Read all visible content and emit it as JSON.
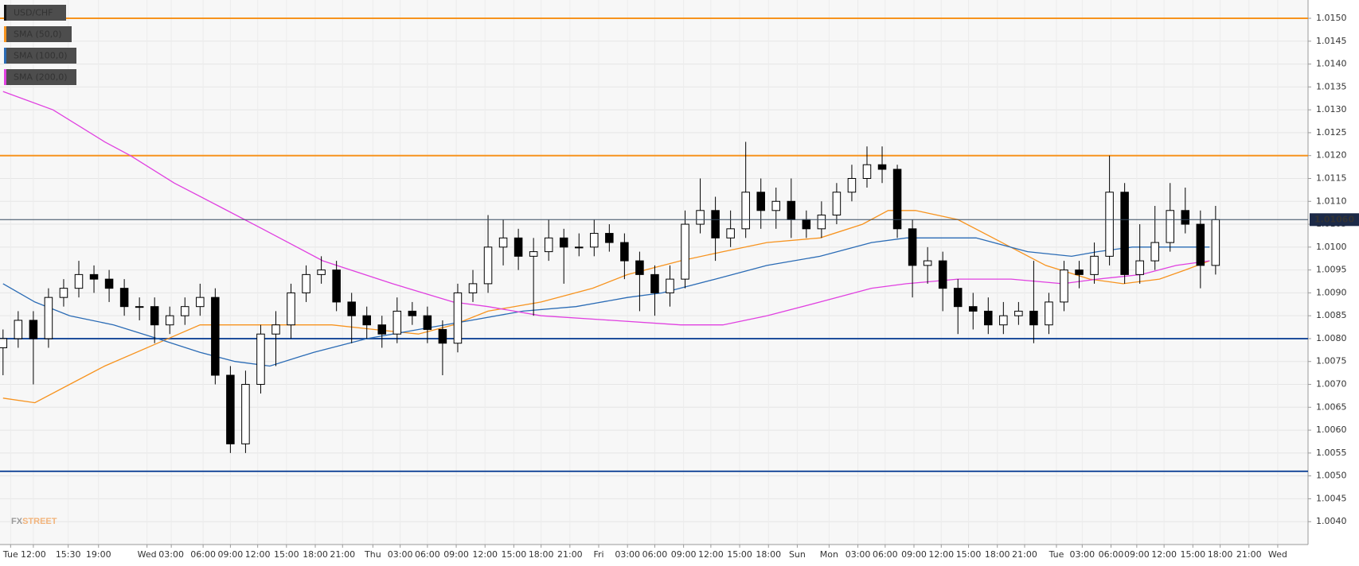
{
  "chart_data": {
    "type": "candlestick",
    "xlim": [
      -0.2,
      86.1
    ],
    "ylim": [
      1.0035,
      1.0154
    ],
    "grid": true,
    "legend_position": "top-left",
    "watermark": [
      "FX",
      "STREET"
    ],
    "last_price": {
      "value": 1.0106,
      "label": "1.01060"
    },
    "hlines": [
      {
        "value": 1.015,
        "color": "#f7931e"
      },
      {
        "value": 1.012,
        "color": "#f7931e"
      },
      {
        "value": 1.008,
        "color": "#1f4e9c"
      },
      {
        "value": 1.0051,
        "color": "#1f4e9c"
      }
    ],
    "yticks": [
      {
        "value": 1.004,
        "label": "1.0040"
      },
      {
        "value": 1.0045,
        "label": "1.0045"
      },
      {
        "value": 1.005,
        "label": "1.0050"
      },
      {
        "value": 1.0055,
        "label": "1.0055"
      },
      {
        "value": 1.006,
        "label": "1.0060"
      },
      {
        "value": 1.0065,
        "label": "1.0065"
      },
      {
        "value": 1.007,
        "label": "1.0070"
      },
      {
        "value": 1.0075,
        "label": "1.0075"
      },
      {
        "value": 1.008,
        "label": "1.0080"
      },
      {
        "value": 1.0085,
        "label": "1.0085"
      },
      {
        "value": 1.009,
        "label": "1.0090"
      },
      {
        "value": 1.0095,
        "label": "1.0095"
      },
      {
        "value": 1.01,
        "label": "1.0100"
      },
      {
        "value": 1.0105,
        "label": "1.0105"
      },
      {
        "value": 1.011,
        "label": "1.0110"
      },
      {
        "value": 1.0115,
        "label": "1.0115"
      },
      {
        "value": 1.012,
        "label": "1.0120"
      },
      {
        "value": 1.0125,
        "label": "1.0125"
      },
      {
        "value": 1.013,
        "label": "1.0130"
      },
      {
        "value": 1.0135,
        "label": "1.0135"
      },
      {
        "value": 1.014,
        "label": "1.0140"
      },
      {
        "value": 1.0145,
        "label": "1.0145"
      },
      {
        "value": 1.015,
        "label": "1.0150"
      }
    ],
    "xticks": [
      {
        "value": 0.5,
        "label": "Tue"
      },
      {
        "value": 2.0,
        "label": "12:00"
      },
      {
        "value": 4.3,
        "label": "15:30"
      },
      {
        "value": 6.3,
        "label": "19:00"
      },
      {
        "value": 9.5,
        "label": "Wed"
      },
      {
        "value": 11.1,
        "label": "03:00"
      },
      {
        "value": 13.2,
        "label": "06:00"
      },
      {
        "value": 15.0,
        "label": "09:00"
      },
      {
        "value": 16.8,
        "label": "12:00"
      },
      {
        "value": 18.7,
        "label": "15:00"
      },
      {
        "value": 20.6,
        "label": "18:00"
      },
      {
        "value": 22.4,
        "label": "21:00"
      },
      {
        "value": 24.4,
        "label": "Thu"
      },
      {
        "value": 26.2,
        "label": "03:00"
      },
      {
        "value": 28.0,
        "label": "06:00"
      },
      {
        "value": 29.9,
        "label": "09:00"
      },
      {
        "value": 31.8,
        "label": "12:00"
      },
      {
        "value": 33.7,
        "label": "15:00"
      },
      {
        "value": 35.5,
        "label": "18:00"
      },
      {
        "value": 37.4,
        "label": "21:00"
      },
      {
        "value": 39.3,
        "label": "Fri"
      },
      {
        "value": 41.2,
        "label": "03:00"
      },
      {
        "value": 43.0,
        "label": "06:00"
      },
      {
        "value": 44.9,
        "label": "09:00"
      },
      {
        "value": 46.7,
        "label": "12:00"
      },
      {
        "value": 48.6,
        "label": "15:00"
      },
      {
        "value": 50.5,
        "label": "18:00"
      },
      {
        "value": 52.4,
        "label": "Sun"
      },
      {
        "value": 54.5,
        "label": "Mon"
      },
      {
        "value": 56.4,
        "label": "03:00"
      },
      {
        "value": 58.2,
        "label": "06:00"
      },
      {
        "value": 60.1,
        "label": "09:00"
      },
      {
        "value": 61.9,
        "label": "12:00"
      },
      {
        "value": 63.7,
        "label": "15:00"
      },
      {
        "value": 65.6,
        "label": "18:00"
      },
      {
        "value": 67.4,
        "label": "21:00"
      },
      {
        "value": 69.5,
        "label": "Tue"
      },
      {
        "value": 71.2,
        "label": "03:00"
      },
      {
        "value": 73.1,
        "label": "06:00"
      },
      {
        "value": 74.8,
        "label": "09:00"
      },
      {
        "value": 76.6,
        "label": "12:00"
      },
      {
        "value": 78.5,
        "label": "15:00"
      },
      {
        "value": 80.3,
        "label": "18:00"
      },
      {
        "value": 82.2,
        "label": "21:00"
      },
      {
        "value": 84.1,
        "label": "Wed"
      }
    ],
    "series": [
      {
        "name": "USD/CHF",
        "color": "#000000",
        "x": [
          0,
          1,
          2,
          3,
          4,
          5,
          6,
          7,
          8,
          9,
          10,
          11,
          12,
          13,
          14,
          15,
          16,
          17,
          18,
          19,
          20,
          21,
          22,
          23,
          24,
          25,
          26,
          27,
          28,
          29,
          30,
          31,
          32,
          33,
          34,
          35,
          36,
          37,
          38,
          39,
          40,
          41,
          42,
          43,
          44,
          45,
          46,
          47,
          48,
          49,
          50,
          51,
          52,
          53,
          54,
          55,
          56,
          57,
          58,
          59,
          60,
          61,
          62,
          63,
          64,
          65,
          66,
          67,
          68,
          69,
          70,
          71,
          72,
          73,
          74,
          75,
          76,
          77,
          78,
          79,
          80
        ],
        "open": [
          1.0078,
          1.008,
          1.0084,
          1.008,
          1.0089,
          1.0091,
          1.0094,
          1.0093,
          1.0091,
          1.0087,
          1.0087,
          1.0083,
          1.0085,
          1.0087,
          1.0089,
          1.0072,
          1.0057,
          1.007,
          1.0081,
          1.0083,
          1.009,
          1.0094,
          1.0095,
          1.0088,
          1.0085,
          1.0083,
          1.0081,
          1.0086,
          1.0085,
          1.0082,
          1.0079,
          1.009,
          1.0092,
          1.01,
          1.0102,
          1.0098,
          1.0099,
          1.0102,
          1.01,
          1.01,
          1.0103,
          1.0101,
          1.0097,
          1.0094,
          1.009,
          1.0093,
          1.0105,
          1.0108,
          1.0102,
          1.0104,
          1.0112,
          1.0108,
          1.011,
          1.0106,
          1.0104,
          1.0107,
          1.0112,
          1.0115,
          1.0118,
          1.0117,
          1.0104,
          1.0096,
          1.0097,
          1.0091,
          1.0087,
          1.0086,
          1.0083,
          1.0085,
          1.0086,
          1.0083,
          1.0088,
          1.0095,
          1.0094,
          1.0098,
          1.0112,
          1.0094,
          1.0097,
          1.0101,
          1.0108,
          1.0105,
          1.0096
        ],
        "high": [
          1.0082,
          1.0086,
          1.0086,
          1.0091,
          1.0093,
          1.0097,
          1.0096,
          1.0095,
          1.0093,
          1.0089,
          1.0089,
          1.0087,
          1.0089,
          1.0092,
          1.0091,
          1.0074,
          1.0073,
          1.0083,
          1.0086,
          1.0092,
          1.0096,
          1.0098,
          1.0097,
          1.009,
          1.0087,
          1.0085,
          1.0089,
          1.0088,
          1.0087,
          1.0084,
          1.0092,
          1.0095,
          1.0107,
          1.0106,
          1.0104,
          1.0102,
          1.0106,
          1.0104,
          1.0103,
          1.0106,
          1.0105,
          1.0103,
          1.0099,
          1.0096,
          1.0096,
          1.0108,
          1.0115,
          1.0111,
          1.0108,
          1.0123,
          1.0115,
          1.0113,
          1.0115,
          1.0108,
          1.011,
          1.0114,
          1.0118,
          1.0122,
          1.0122,
          1.0118,
          1.0106,
          1.01,
          1.0099,
          1.0093,
          1.009,
          1.0089,
          1.0088,
          1.0088,
          1.0097,
          1.009,
          1.0097,
          1.0097,
          1.0101,
          1.012,
          1.0114,
          1.0105,
          1.0109,
          1.0114,
          1.0113,
          1.0108,
          1.0109
        ],
        "low": [
          1.0072,
          1.0078,
          1.007,
          1.0078,
          1.0087,
          1.0089,
          1.009,
          1.0088,
          1.0085,
          1.0084,
          1.0079,
          1.0081,
          1.0083,
          1.0085,
          1.007,
          1.0055,
          1.0055,
          1.0068,
          1.0074,
          1.008,
          1.0088,
          1.0092,
          1.0086,
          1.0079,
          1.008,
          1.0078,
          1.0079,
          1.0083,
          1.0079,
          1.0072,
          1.0077,
          1.0088,
          1.009,
          1.0096,
          1.0095,
          1.0085,
          1.0097,
          1.0092,
          1.0098,
          1.0098,
          1.0099,
          1.0093,
          1.0086,
          1.0085,
          1.0087,
          1.0091,
          1.0103,
          1.0097,
          1.01,
          1.0102,
          1.0104,
          1.0104,
          1.0102,
          1.0102,
          1.0102,
          1.0105,
          1.011,
          1.0113,
          1.0114,
          1.0102,
          1.0089,
          1.0092,
          1.0086,
          1.0081,
          1.0082,
          1.0081,
          1.0081,
          1.0083,
          1.0079,
          1.0081,
          1.0086,
          1.0091,
          1.0092,
          1.0096,
          1.0092,
          1.0092,
          1.0095,
          1.0099,
          1.0103,
          1.0091,
          1.0094
        ],
        "close": [
          1.008,
          1.0084,
          1.008,
          1.0089,
          1.0091,
          1.0094,
          1.0093,
          1.0091,
          1.0087,
          1.0087,
          1.0083,
          1.0085,
          1.0087,
          1.0089,
          1.0072,
          1.0057,
          1.007,
          1.0081,
          1.0083,
          1.009,
          1.0094,
          1.0095,
          1.0088,
          1.0085,
          1.0083,
          1.0081,
          1.0086,
          1.0085,
          1.0082,
          1.0079,
          1.009,
          1.0092,
          1.01,
          1.0102,
          1.0098,
          1.0099,
          1.0102,
          1.01,
          1.01,
          1.0103,
          1.0101,
          1.0097,
          1.0094,
          1.009,
          1.0093,
          1.0105,
          1.0108,
          1.0102,
          1.0104,
          1.0112,
          1.0108,
          1.011,
          1.0106,
          1.0104,
          1.0107,
          1.0112,
          1.0115,
          1.0118,
          1.0117,
          1.0104,
          1.0096,
          1.0097,
          1.0091,
          1.0087,
          1.0086,
          1.0083,
          1.0085,
          1.0086,
          1.0083,
          1.0088,
          1.0095,
          1.0094,
          1.0098,
          1.0112,
          1.0094,
          1.0097,
          1.0101,
          1.0108,
          1.0105,
          1.0096,
          1.0106
        ]
      },
      {
        "name": "SMA (50,0)",
        "color": "#f7931e",
        "x": [
          0,
          2.1,
          4.4,
          6.7,
          10.2,
          13.0,
          15.3,
          18.8,
          21.7,
          24.5,
          27.4,
          29.7,
          32.0,
          35.5,
          38.9,
          41.2,
          44.7,
          47.5,
          50.4,
          53.9,
          56.7,
          58.4,
          60.2,
          63.0,
          65.9,
          68.8,
          71.7,
          73.9,
          76.3,
          78.0,
          79.6
        ],
        "values": [
          1.0067,
          1.0066,
          1.007,
          1.0074,
          1.0079,
          1.0083,
          1.0083,
          1.0083,
          1.0083,
          1.0082,
          1.0081,
          1.0083,
          1.0086,
          1.0088,
          1.0091,
          1.0094,
          1.0097,
          1.0099,
          1.0101,
          1.0102,
          1.0105,
          1.0108,
          1.0108,
          1.0106,
          1.0101,
          1.0096,
          1.0093,
          1.0092,
          1.0093,
          1.0095,
          1.0097
        ]
      },
      {
        "name": "SMA (100,0)",
        "color": "#2a6bb5",
        "x": [
          0,
          2.1,
          4.4,
          7.3,
          10.2,
          13.0,
          15.3,
          17.6,
          20.5,
          24.0,
          27.4,
          30.9,
          34.3,
          37.8,
          41.2,
          43.5,
          47.0,
          50.4,
          53.9,
          57.3,
          59.6,
          61.9,
          64.2,
          67.6,
          70.5,
          72.2,
          74.5,
          76.8,
          79.6
        ],
        "values": [
          1.0092,
          1.0088,
          1.0085,
          1.0083,
          1.008,
          1.0077,
          1.0075,
          1.0074,
          1.0077,
          1.008,
          1.0082,
          1.0084,
          1.0086,
          1.0087,
          1.0089,
          1.009,
          1.0093,
          1.0096,
          1.0098,
          1.0101,
          1.0102,
          1.0102,
          1.0102,
          1.0099,
          1.0098,
          1.0099,
          1.01,
          1.01,
          1.01
        ]
      },
      {
        "name": "SMA (200,0)",
        "color": "#e040e0",
        "x": [
          0,
          3.3,
          6.7,
          8.4,
          11.3,
          14.2,
          17.1,
          21.1,
          25.7,
          29.7,
          32.0,
          35.5,
          40.1,
          44.7,
          47.5,
          50.4,
          53.9,
          57.3,
          59.6,
          63.0,
          66.5,
          69.9,
          72.2,
          75.1,
          77.4,
          79.6
        ],
        "values": [
          1.0134,
          1.013,
          1.0123,
          1.012,
          1.0114,
          1.0109,
          1.0104,
          1.0097,
          1.0092,
          1.0088,
          1.0087,
          1.0085,
          1.0084,
          1.0083,
          1.0083,
          1.0085,
          1.0088,
          1.0091,
          1.0092,
          1.0093,
          1.0093,
          1.0092,
          1.0093,
          1.0094,
          1.0096,
          1.0097
        ]
      }
    ]
  }
}
